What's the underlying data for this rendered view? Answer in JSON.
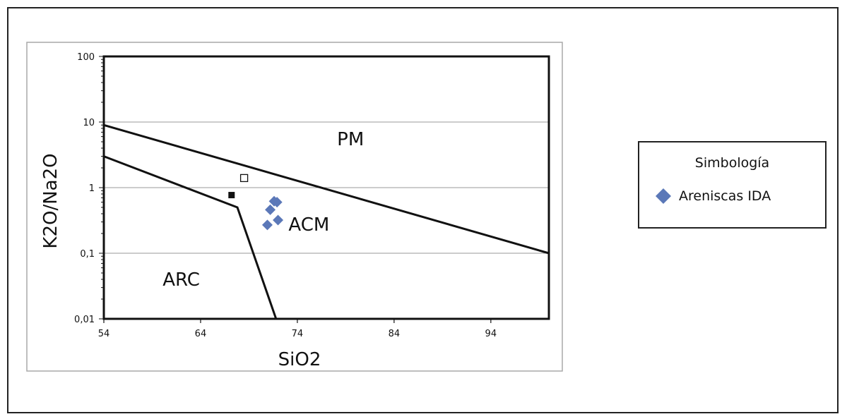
{
  "chart_data": {
    "type": "scatter",
    "title": "",
    "xlabel": "SiO2",
    "ylabel": "K2O/Na2O",
    "xlim": [
      54,
      100
    ],
    "ylim": [
      0.01,
      100
    ],
    "yscale": "log",
    "x_ticks": [
      54,
      64,
      74,
      84,
      94
    ],
    "x_tick_labels": [
      "54",
      "64",
      "74",
      "84",
      "94"
    ],
    "y_ticks": [
      0.01,
      0.1,
      1,
      10,
      100
    ],
    "y_tick_labels": [
      "0,01",
      "0,1",
      "1",
      "10",
      "100"
    ],
    "grid": "horizontal",
    "legend_position": "right",
    "legend": {
      "title": "Simbología",
      "entries": [
        {
          "label": "Areniscas IDA",
          "marker": "diamond",
          "color": "#5b78b8"
        }
      ]
    },
    "series": [
      {
        "name": "Areniscas IDA",
        "marker": "diamond",
        "color": "#5b78b8",
        "points": [
          {
            "x": 71.6,
            "y": 0.62
          },
          {
            "x": 71.9,
            "y": 0.6
          },
          {
            "x": 71.2,
            "y": 0.46
          },
          {
            "x": 72.0,
            "y": 0.32
          },
          {
            "x": 70.9,
            "y": 0.27
          }
        ]
      },
      {
        "marker": "filled-square",
        "color": "#111111",
        "points": [
          {
            "x": 67.2,
            "y": 0.77
          }
        ]
      },
      {
        "marker": "open-square",
        "color": "#111111",
        "points": [
          {
            "x": 68.5,
            "y": 1.4
          }
        ]
      }
    ],
    "boundary_lines": [
      {
        "points": [
          [
            54,
            9
          ],
          [
            100,
            0.1
          ]
        ]
      },
      {
        "points": [
          [
            54,
            3
          ],
          [
            67.8,
            0.5
          ],
          [
            71.8,
            0.01
          ]
        ]
      }
    ],
    "region_labels": [
      {
        "text": "PM",
        "x": 79.5,
        "y": 4.4
      },
      {
        "text": "ACM",
        "x": 75.2,
        "y": 0.22
      },
      {
        "text": "ARC",
        "x": 62.0,
        "y": 0.032
      }
    ]
  }
}
